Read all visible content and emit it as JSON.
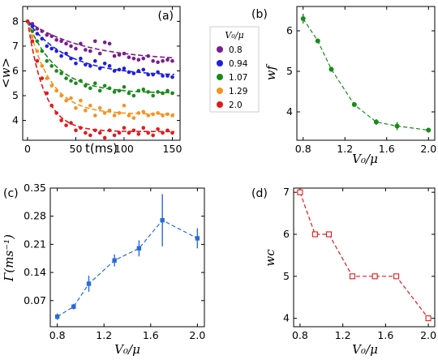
{
  "chart_data": [
    {
      "id": "a",
      "panel_label": "(a)",
      "type": "scatter",
      "xlabel": "t(ms)",
      "ylabel": "<w>",
      "xlim": [
        -5,
        158
      ],
      "ylim": [
        3.2,
        8.6
      ],
      "xticks": [
        "0",
        "50",
        "100",
        "150"
      ],
      "xtick_values": [
        0,
        50,
        100,
        150
      ],
      "yticks": [
        "4",
        "5",
        "6",
        "7",
        "8"
      ],
      "ytick_values": [
        4,
        5,
        6,
        7,
        8
      ],
      "legend": {
        "title": "V₀/μ",
        "placement": "outside-right"
      },
      "series": [
        {
          "name": "0.8",
          "color": "#7b1c8f",
          "fit": {
            "a": 1.6,
            "tau": 60,
            "c": 6.4
          },
          "x": [
            0,
            5,
            10,
            15,
            20,
            25,
            30,
            35,
            40,
            45,
            50,
            55,
            60,
            65,
            70,
            75,
            80,
            85,
            90,
            95,
            100,
            105,
            110,
            115,
            120,
            125,
            130,
            135,
            140,
            145,
            150
          ],
          "y": [
            8.0,
            7.9,
            7.7,
            7.6,
            7.45,
            7.4,
            7.25,
            7.2,
            7.1,
            7.0,
            6.9,
            7.1,
            6.85,
            6.8,
            7.2,
            6.7,
            7.15,
            7.1,
            6.6,
            6.65,
            6.7,
            6.55,
            6.5,
            6.45,
            6.5,
            6.6,
            6.4,
            6.35,
            6.4,
            6.45,
            6.4
          ]
        },
        {
          "name": "0.94",
          "color": "#1f1fe0",
          "fit": {
            "a": 2.2,
            "tau": 42,
            "c": 5.8
          },
          "x": [
            0,
            5,
            10,
            15,
            20,
            25,
            30,
            35,
            40,
            45,
            50,
            55,
            60,
            65,
            70,
            75,
            80,
            85,
            90,
            95,
            100,
            105,
            110,
            115,
            120,
            125,
            130,
            135,
            140,
            145,
            150
          ],
          "y": [
            8.0,
            7.8,
            7.5,
            7.3,
            7.0,
            6.9,
            6.8,
            6.6,
            6.7,
            6.5,
            6.3,
            6.5,
            6.25,
            6.2,
            6.4,
            6.1,
            6.3,
            6.2,
            6.0,
            6.05,
            6.1,
            5.95,
            5.9,
            6.0,
            6.05,
            5.85,
            5.85,
            5.95,
            5.8,
            5.8,
            5.75
          ]
        },
        {
          "name": "1.07",
          "color": "#1a8a1a",
          "fit": {
            "a": 2.9,
            "tau": 30,
            "c": 5.1
          },
          "x": [
            0,
            5,
            10,
            15,
            20,
            25,
            30,
            35,
            40,
            45,
            50,
            55,
            60,
            65,
            70,
            75,
            80,
            85,
            90,
            95,
            100,
            105,
            110,
            115,
            120,
            125,
            130,
            135,
            140,
            145,
            150
          ],
          "y": [
            8.0,
            7.6,
            7.2,
            6.8,
            6.4,
            6.2,
            6.0,
            5.9,
            5.7,
            5.6,
            5.5,
            5.6,
            5.4,
            5.3,
            5.5,
            5.2,
            5.4,
            5.3,
            5.15,
            5.2,
            5.35,
            5.1,
            5.0,
            5.2,
            5.25,
            5.15,
            5.0,
            5.15,
            5.1,
            5.2,
            5.1
          ]
        },
        {
          "name": "1.29",
          "color": "#f5931f",
          "fit": {
            "a": 3.8,
            "tau": 23,
            "c": 4.25
          },
          "x": [
            0,
            5,
            10,
            15,
            20,
            25,
            30,
            35,
            40,
            45,
            50,
            55,
            60,
            65,
            70,
            75,
            80,
            85,
            90,
            95,
            100,
            105,
            110,
            115,
            120,
            125,
            130,
            135,
            140,
            145,
            150
          ],
          "y": [
            8.0,
            7.4,
            6.8,
            6.2,
            5.7,
            5.4,
            5.2,
            5.0,
            4.8,
            4.9,
            4.5,
            4.8,
            4.4,
            4.6,
            4.2,
            4.5,
            4.3,
            4.4,
            4.2,
            4.3,
            4.6,
            4.2,
            4.1,
            4.3,
            4.35,
            4.2,
            4.25,
            4.3,
            4.2,
            4.25,
            4.2
          ]
        },
        {
          "name": "2.0",
          "color": "#e3191c",
          "fit": {
            "a": 4.5,
            "tau": 17,
            "c": 3.55
          },
          "x": [
            0,
            5,
            10,
            15,
            20,
            25,
            30,
            35,
            40,
            45,
            50,
            55,
            60,
            65,
            70,
            75,
            80,
            85,
            90,
            95,
            100,
            105,
            110,
            115,
            120,
            125,
            130,
            135,
            140,
            145,
            150
          ],
          "y": [
            8.0,
            7.2,
            6.4,
            5.7,
            5.1,
            4.6,
            4.3,
            4.0,
            3.8,
            3.9,
            3.6,
            3.7,
            3.5,
            3.4,
            3.6,
            3.5,
            3.3,
            3.6,
            3.4,
            3.5,
            3.7,
            3.5,
            3.6,
            3.45,
            3.7,
            3.5,
            3.4,
            3.65,
            3.5,
            3.6,
            3.5
          ]
        }
      ]
    },
    {
      "id": "b",
      "panel_label": "(b)",
      "type": "line",
      "xlabel": "V₀/μ",
      "ylabel": "wf",
      "color": "#1a8a1a",
      "marker": "circle-filled",
      "xlim": [
        0.74,
        2.06
      ],
      "ylim": [
        3.3,
        6.6
      ],
      "xticks": [
        "0.8",
        "1.2",
        "1.6",
        "2.0"
      ],
      "xtick_values": [
        0.8,
        1.2,
        1.6,
        2.0
      ],
      "yticks": [
        "4",
        "5",
        "6"
      ],
      "ytick_values": [
        4,
        5,
        6
      ],
      "x": [
        0.8,
        0.94,
        1.07,
        1.29,
        1.5,
        1.7,
        2.0
      ],
      "y": [
        6.3,
        5.75,
        5.05,
        4.18,
        3.75,
        3.65,
        3.55
      ],
      "yerr": [
        0.12,
        0.05,
        0.06,
        0.04,
        0.07,
        0.1,
        0.06
      ]
    },
    {
      "id": "c",
      "panel_label": "(c)",
      "type": "line",
      "xlabel": "V₀/μ",
      "ylabel": "Γ(ms⁻¹)",
      "color": "#2a6ad8",
      "marker": "square-filled",
      "xlim": [
        0.74,
        2.06
      ],
      "ylim": [
        0.005,
        0.35
      ],
      "xticks": [
        "0.8",
        "1.2",
        "1.6",
        "2.0"
      ],
      "xtick_values": [
        0.8,
        1.2,
        1.6,
        2.0
      ],
      "yticks": [
        "0.07",
        "0.14",
        "0.21",
        "0.28",
        "0.35"
      ],
      "ytick_values": [
        0.07,
        0.14,
        0.21,
        0.28,
        0.35
      ],
      "x": [
        0.8,
        0.94,
        1.07,
        1.29,
        1.5,
        1.7,
        2.0
      ],
      "y": [
        0.03,
        0.055,
        0.112,
        0.17,
        0.2,
        0.27,
        0.225
      ],
      "yerr": [
        0.008,
        0.007,
        0.02,
        0.015,
        0.02,
        0.065,
        0.025
      ]
    },
    {
      "id": "d",
      "panel_label": "(d)",
      "type": "line",
      "xlabel": "V₀/μ",
      "ylabel": "wc",
      "color": "#e3191c",
      "marker": "square-open",
      "xlim": [
        0.74,
        2.06
      ],
      "ylim": [
        3.8,
        7.1
      ],
      "xticks": [
        "0.8",
        "1.2",
        "1.6",
        "2.0"
      ],
      "xtick_values": [
        0.8,
        1.2,
        1.6,
        2.0
      ],
      "yticks": [
        "4",
        "5",
        "6",
        "7"
      ],
      "ytick_values": [
        4,
        5,
        6,
        7
      ],
      "x": [
        0.8,
        0.94,
        1.07,
        1.29,
        1.5,
        1.7,
        2.0
      ],
      "y": [
        7,
        6,
        6,
        5,
        5,
        5,
        4
      ]
    }
  ]
}
